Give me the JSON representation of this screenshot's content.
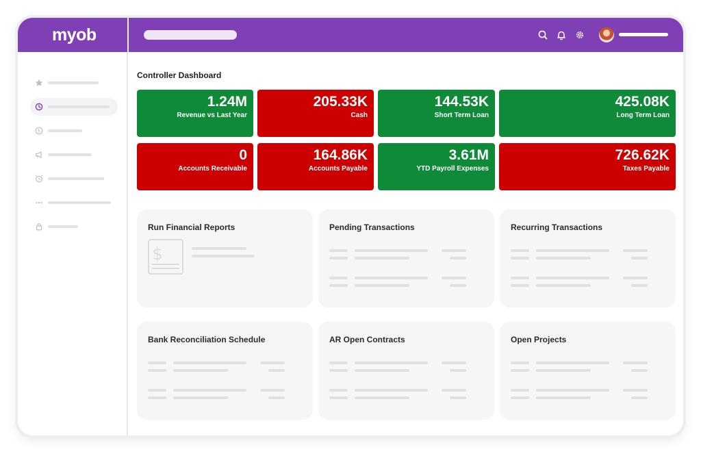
{
  "app": {
    "logo_text": "myob",
    "brand_color": "#7f3fb5"
  },
  "header": {
    "icons": [
      "search-icon",
      "bell-icon",
      "gear-icon"
    ],
    "user_avatar": "avatar"
  },
  "sidebar": {
    "items": [
      {
        "icon": "star-icon",
        "active": false
      },
      {
        "icon": "clock-icon",
        "active": true
      },
      {
        "icon": "dollar-icon",
        "active": false
      },
      {
        "icon": "megaphone-icon",
        "active": false
      },
      {
        "icon": "alarm-icon",
        "active": false
      },
      {
        "icon": "more-icon",
        "active": false
      },
      {
        "icon": "lock-icon",
        "active": false
      }
    ]
  },
  "dashboard": {
    "title": "Controller Dashboard",
    "status_colors": {
      "positive": "#0f8a38",
      "negative": "#cc0000"
    },
    "kpis": [
      {
        "value": "1.24M",
        "label": "Revenue vs Last Year",
        "status": "positive"
      },
      {
        "value": "205.33K",
        "label": "Cash",
        "status": "negative"
      },
      {
        "value": "144.53K",
        "label": "Short Term Loan",
        "status": "positive"
      },
      {
        "value": "425.08K",
        "label": "Long Term Loan",
        "status": "positive"
      },
      {
        "value": "0",
        "label": "Accounts Receivable",
        "status": "negative"
      },
      {
        "value": "164.86K",
        "label": "Accounts Payable",
        "status": "negative"
      },
      {
        "value": "3.61M",
        "label": "YTD Payroll Expenses",
        "status": "positive"
      },
      {
        "value": "726.62K",
        "label": "Taxes Payable",
        "status": "negative"
      }
    ],
    "widgets": [
      {
        "title": "Run Financial Reports",
        "icon": "dollar-document-icon"
      },
      {
        "title": "Pending Transactions"
      },
      {
        "title": "Recurring Transactions"
      },
      {
        "title": "Bank Reconciliation Schedule"
      },
      {
        "title": "AR Open Contracts"
      },
      {
        "title": "Open Projects"
      }
    ]
  }
}
